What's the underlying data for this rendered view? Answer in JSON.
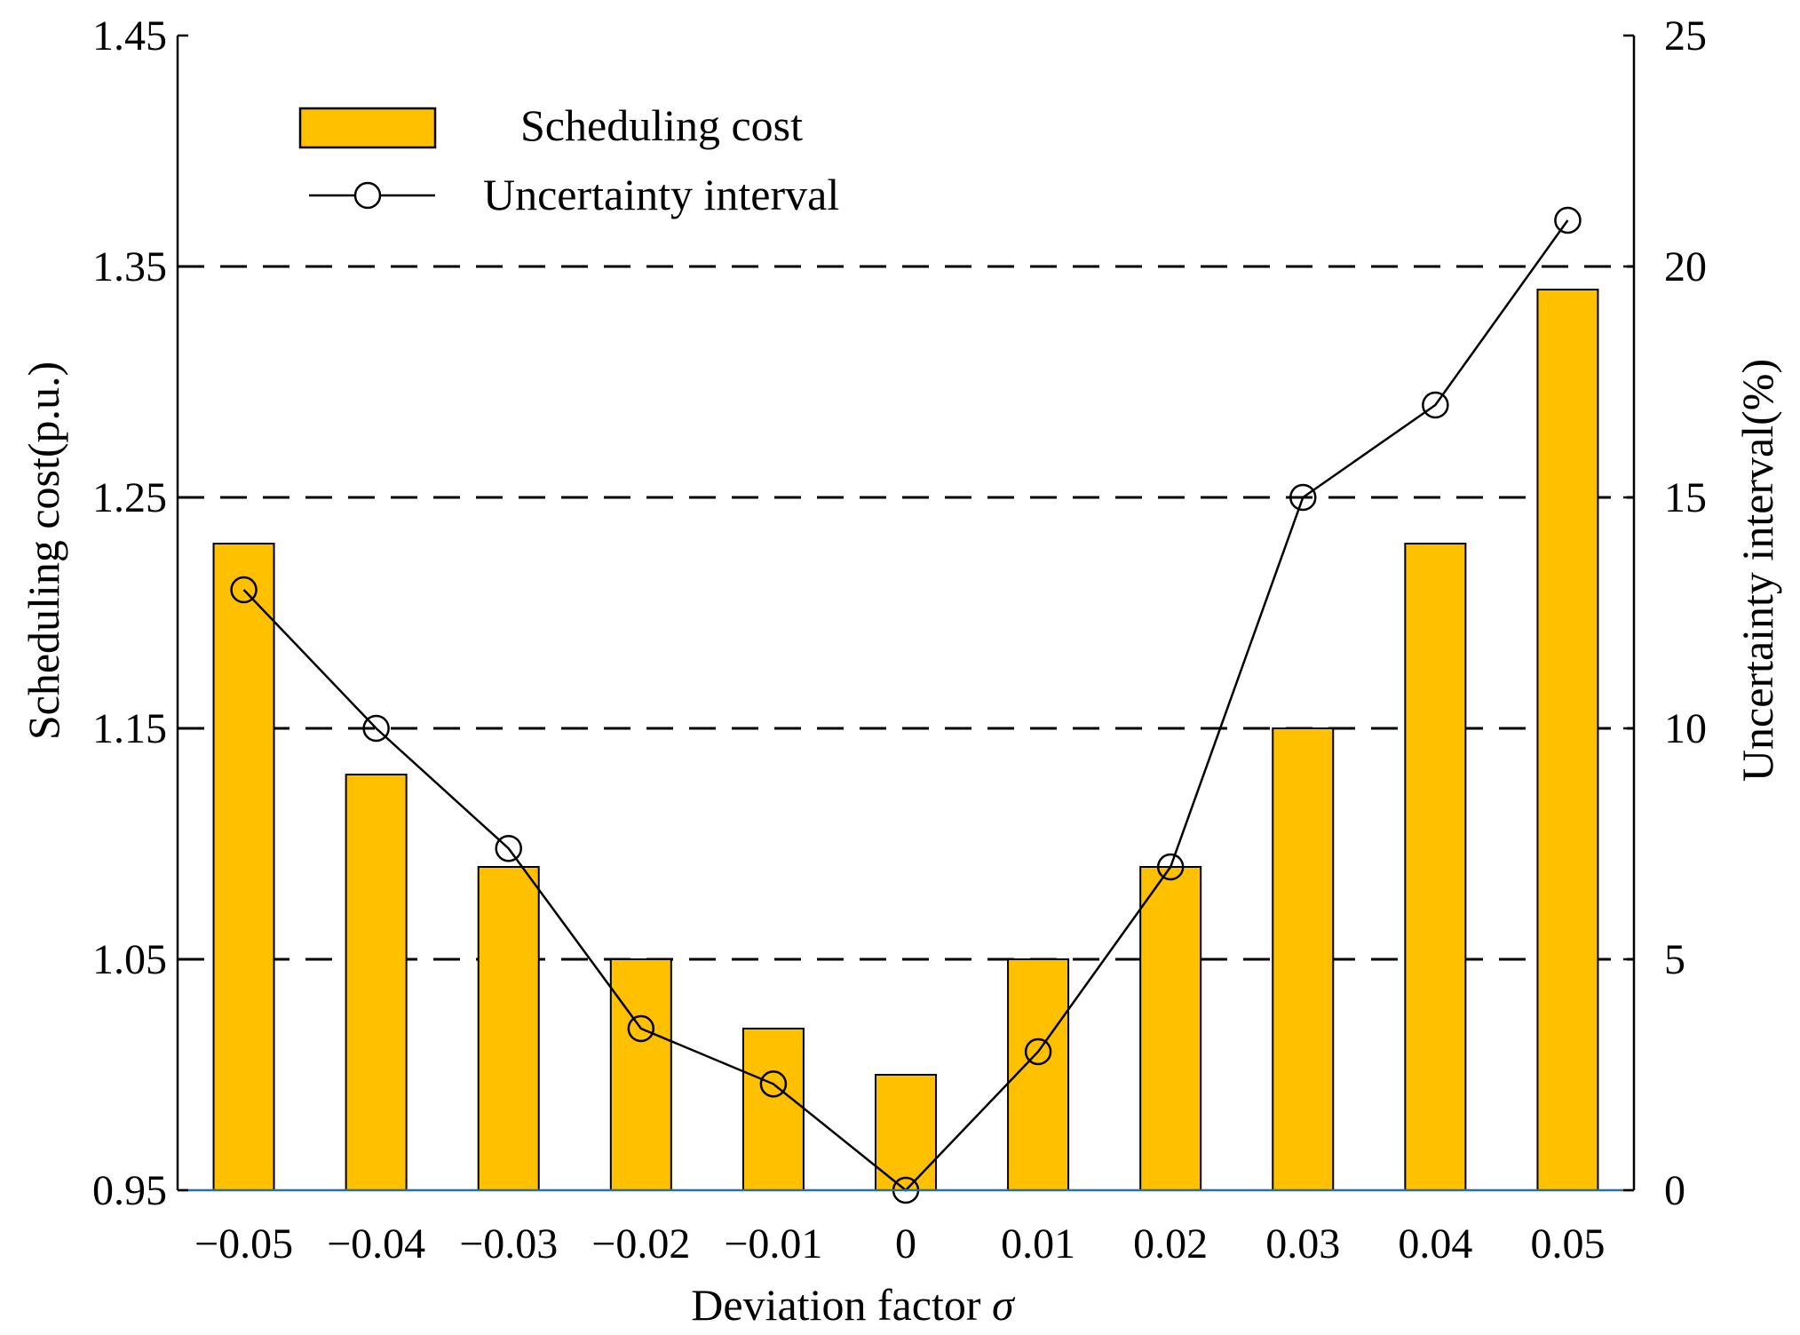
{
  "chart_data": {
    "type": "bar+line",
    "title": "",
    "xlabel": "Deviation factor",
    "xlabel_symbol": "σ",
    "ylabel_left": "Scheduling cost(p.u.)",
    "ylabel_right": "Uncertainty interval(%)",
    "categories": [
      "−0.05",
      "−0.04",
      "−0.03",
      "−0.02",
      "−0.01",
      "0",
      "0.01",
      "0.02",
      "0.03",
      "0.04",
      "0.05"
    ],
    "series": [
      {
        "name": "Scheduling cost",
        "type": "bar",
        "axis": "left",
        "color": "#FFC000",
        "values": [
          1.23,
          1.13,
          1.09,
          1.05,
          1.02,
          1.0,
          1.05,
          1.09,
          1.15,
          1.23,
          1.34
        ]
      },
      {
        "name": "Uncertainty interval",
        "type": "line",
        "axis": "right",
        "color": "#000000",
        "marker": "open-circle",
        "values": [
          13.0,
          10.0,
          7.4,
          3.5,
          2.3,
          0.0,
          3.0,
          7.0,
          15.0,
          17.0,
          21.0
        ]
      }
    ],
    "ylim_left": [
      0.95,
      1.45
    ],
    "yticks_left": [
      "0.95",
      "1.05",
      "1.15",
      "1.25",
      "1.35",
      "1.45"
    ],
    "ylim_right": [
      0,
      25
    ],
    "yticks_right": [
      "0",
      "5",
      "10",
      "15",
      "20",
      "25"
    ],
    "grid": "dashed horizontal at 1.05, 1.15, 1.25, 1.35",
    "legend": {
      "position": "top-left",
      "entries": [
        "Scheduling cost",
        "Uncertainty interval"
      ]
    }
  }
}
